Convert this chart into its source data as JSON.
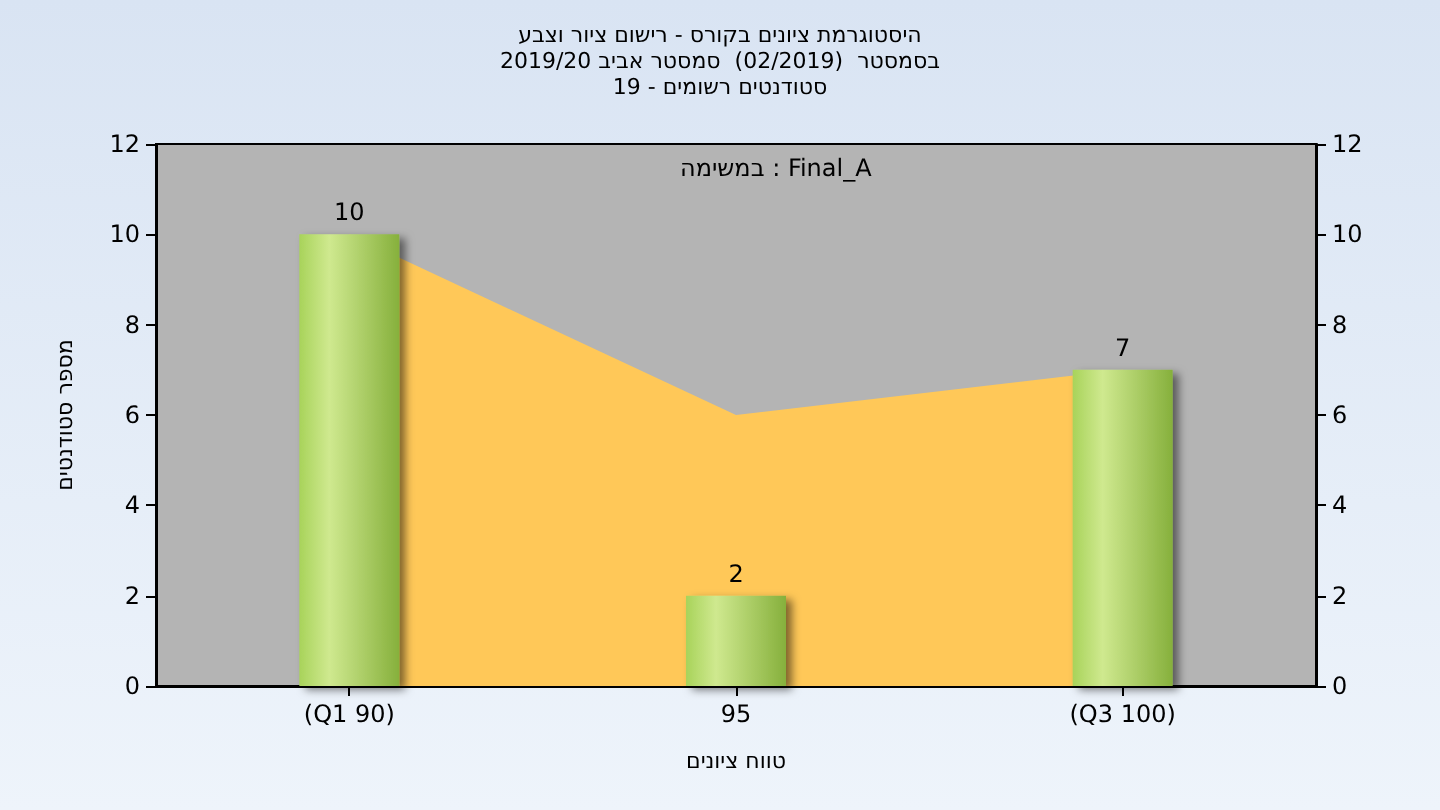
{
  "chart_data": {
    "type": "bar",
    "title": "היסטוגרמת ציונים בקורס - רישום ציור וצבע\nבסמסטר  (02/2019)  סמסטר אביב 2019/20\nסטודנטים רשומים - 19",
    "xlabel": "טווח ציונים",
    "ylabel": "מספר סטודנטים",
    "annotations": [
      "במשימה : Final_A"
    ],
    "categories": [
      "(Q1 90)",
      "95",
      "(Q3 100)"
    ],
    "series": [
      {
        "type": "area",
        "color": "#ffc858",
        "values": [
          10,
          6,
          7
        ]
      },
      {
        "color": "#86b03c",
        "values": [
          10,
          2,
          7
        ],
        "value_labels": [
          "10",
          "2",
          "7"
        ]
      }
    ],
    "ylim": [
      0,
      12
    ],
    "yticks": [
      0,
      2,
      4,
      6,
      8,
      10,
      12
    ],
    "y2lim": [
      0,
      12
    ],
    "y2ticks": [
      0,
      2,
      4,
      6,
      8,
      10,
      12
    ],
    "grid": false
  }
}
